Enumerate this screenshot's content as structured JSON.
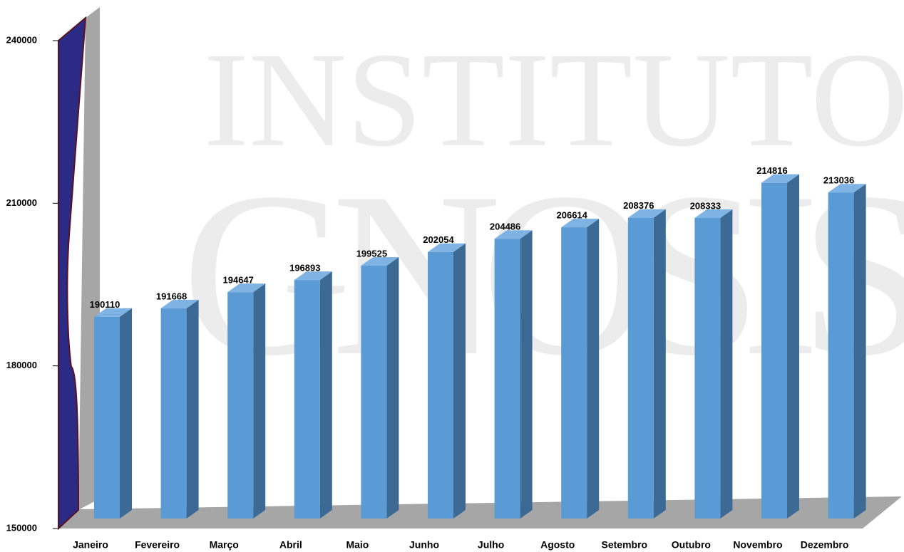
{
  "chart_data": {
    "type": "bar3d",
    "watermark": [
      "INSTITUTO",
      "GNOSIS"
    ],
    "categories": [
      "Janeiro",
      "Fevereiro",
      "Março",
      "Abril",
      "Maio",
      "Junho",
      "Julho",
      "Agosto",
      "Setembro",
      "Outubro",
      "Novembro",
      "Dezembro"
    ],
    "values": [
      190110,
      191668,
      194647,
      196893,
      199525,
      202054,
      204486,
      206614,
      208376,
      208333,
      214816,
      213036
    ],
    "color": "#5b9bd5",
    "ylim": [
      150000,
      240000
    ],
    "yticks": [
      150000,
      180000,
      210000,
      240000
    ]
  }
}
